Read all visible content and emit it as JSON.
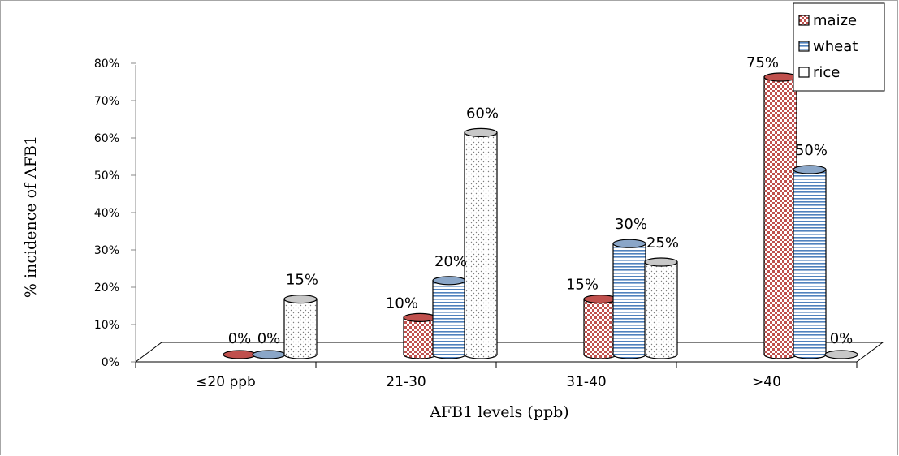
{
  "chart_data": {
    "type": "bar",
    "title": "",
    "xlabel": "AFB1 levels (ppb)",
    "ylabel": "% incidence of AFB1",
    "categories": [
      "≤20 ppb",
      "21-30",
      "31-40",
      ">40"
    ],
    "ylim": [
      0,
      80
    ],
    "yticks": [
      "0%",
      "10%",
      "20%",
      "30%",
      "40%",
      "50%",
      "60%",
      "70%",
      "80%"
    ],
    "series": [
      {
        "name": "maize",
        "values": [
          0,
          10,
          15,
          75
        ],
        "labels": [
          "0%",
          "10%",
          "15%",
          "75%"
        ],
        "color": "#c0504d",
        "pattern": "checker"
      },
      {
        "name": "wheat",
        "values": [
          0,
          20,
          30,
          50
        ],
        "labels": [
          "0%",
          "20%",
          "30%",
          "50%"
        ],
        "color": "#4f81bd",
        "pattern": "stripes"
      },
      {
        "name": "rice",
        "values": [
          15,
          60,
          25,
          0
        ],
        "labels": [
          "15%",
          "60%",
          "25%",
          "0%"
        ],
        "color": "#7f7f7f",
        "pattern": "dots"
      }
    ],
    "legend_position": "top-right",
    "grid": false
  }
}
